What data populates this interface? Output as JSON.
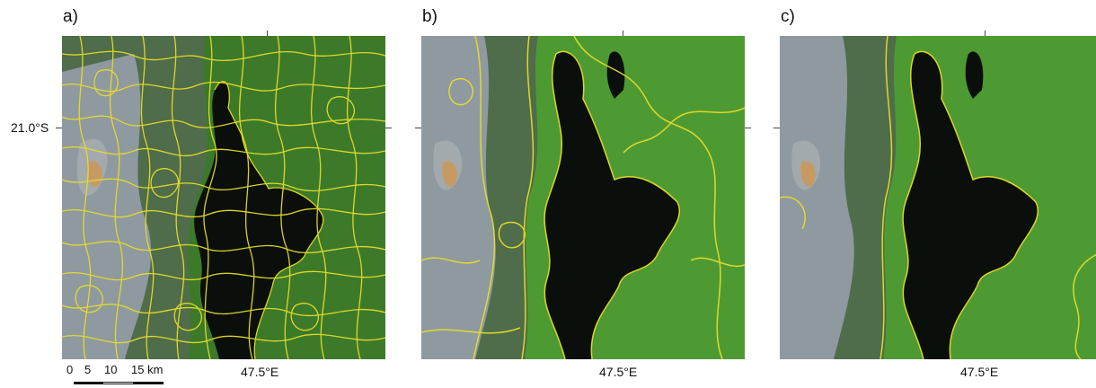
{
  "panels": [
    {
      "letter": "a)",
      "lon_label": "47.5°E",
      "lat_label": "21.0°S",
      "boundary_density": "high"
    },
    {
      "letter": "b)",
      "lon_label": "47.5°E",
      "boundary_density": "medium"
    },
    {
      "letter": "c)",
      "lon_label": "47.5°E",
      "boundary_density": "low"
    }
  ],
  "scale_bar": {
    "ticks": [
      "0",
      "5",
      "10",
      "15 km"
    ]
  },
  "colors": {
    "boundary": "#e6dc2a",
    "forest": "#3c7a2a",
    "dark_vegetation": "#0b0f0b",
    "cleared_land": "#8f99a0",
    "bare_soil": "#c79a64"
  }
}
